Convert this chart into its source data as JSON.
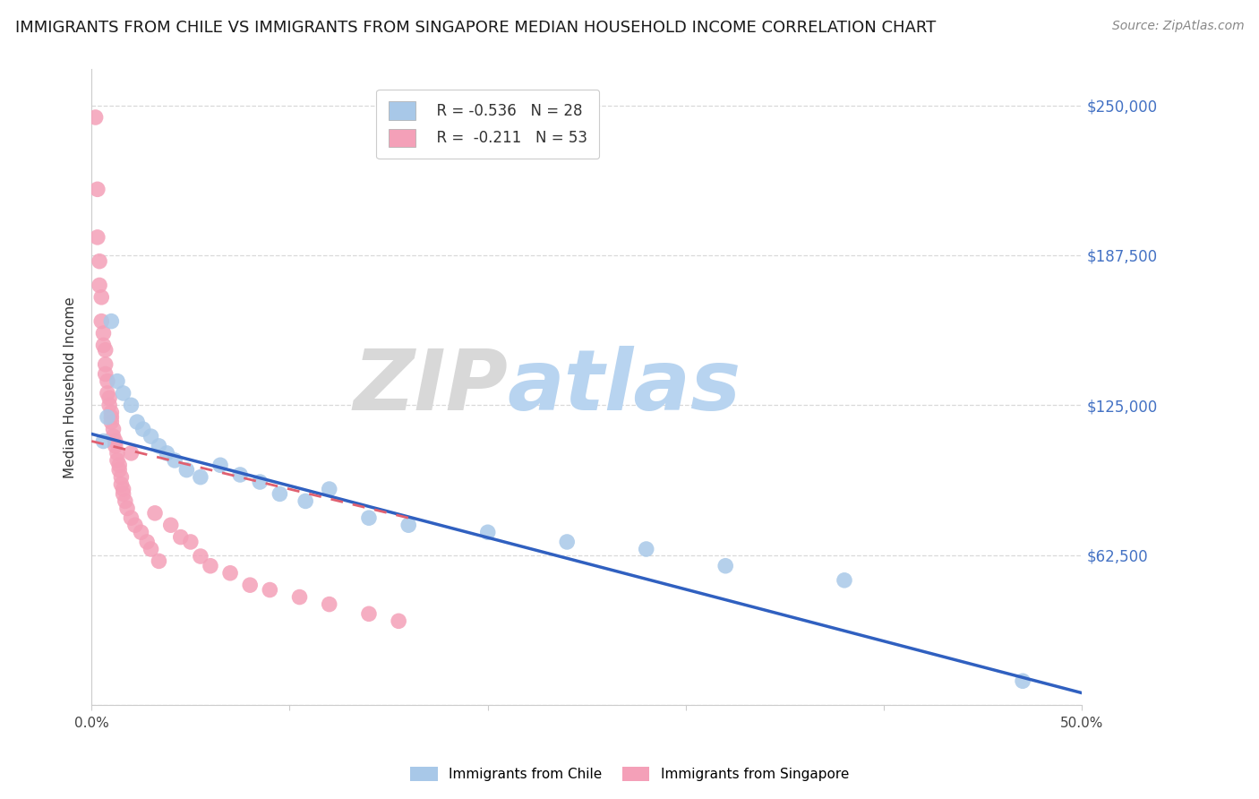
{
  "title": "IMMIGRANTS FROM CHILE VS IMMIGRANTS FROM SINGAPORE MEDIAN HOUSEHOLD INCOME CORRELATION CHART",
  "source": "Source: ZipAtlas.com",
  "ylabel": "Median Household Income",
  "yticks": [
    0,
    62500,
    125000,
    187500,
    250000
  ],
  "ytick_labels": [
    "",
    "$62,500",
    "$125,000",
    "$187,500",
    "$250,000"
  ],
  "xlim": [
    0.0,
    0.5
  ],
  "ylim": [
    0,
    265000
  ],
  "watermark_zip": "ZIP",
  "watermark_atlas": "atlas",
  "legend_chile_r": "-0.536",
  "legend_chile_n": "28",
  "legend_singapore_r": "-0.211",
  "legend_singapore_n": "53",
  "chile_color": "#a8c8e8",
  "singapore_color": "#f4a0b8",
  "chile_line_color": "#3060c0",
  "singapore_line_color": "#e06070",
  "chile_scatter_x": [
    0.006,
    0.008,
    0.01,
    0.013,
    0.016,
    0.02,
    0.023,
    0.026,
    0.03,
    0.034,
    0.038,
    0.042,
    0.048,
    0.055,
    0.065,
    0.075,
    0.085,
    0.095,
    0.108,
    0.12,
    0.14,
    0.16,
    0.2,
    0.24,
    0.28,
    0.32,
    0.38,
    0.47
  ],
  "chile_scatter_y": [
    110000,
    120000,
    160000,
    135000,
    130000,
    125000,
    118000,
    115000,
    112000,
    108000,
    105000,
    102000,
    98000,
    95000,
    100000,
    96000,
    93000,
    88000,
    85000,
    90000,
    78000,
    75000,
    72000,
    68000,
    65000,
    58000,
    52000,
    10000
  ],
  "singapore_scatter_x": [
    0.002,
    0.003,
    0.003,
    0.004,
    0.004,
    0.005,
    0.005,
    0.006,
    0.006,
    0.007,
    0.007,
    0.007,
    0.008,
    0.008,
    0.009,
    0.009,
    0.01,
    0.01,
    0.01,
    0.011,
    0.011,
    0.012,
    0.012,
    0.013,
    0.013,
    0.014,
    0.014,
    0.015,
    0.015,
    0.016,
    0.016,
    0.017,
    0.018,
    0.02,
    0.022,
    0.025,
    0.028,
    0.03,
    0.034,
    0.04,
    0.045,
    0.05,
    0.055,
    0.06,
    0.07,
    0.08,
    0.09,
    0.105,
    0.12,
    0.14,
    0.155,
    0.02,
    0.032
  ],
  "singapore_scatter_y": [
    245000,
    215000,
    195000,
    185000,
    175000,
    170000,
    160000,
    155000,
    150000,
    148000,
    142000,
    138000,
    135000,
    130000,
    128000,
    125000,
    122000,
    120000,
    118000,
    115000,
    112000,
    110000,
    108000,
    105000,
    102000,
    100000,
    98000,
    95000,
    92000,
    90000,
    88000,
    85000,
    82000,
    78000,
    75000,
    72000,
    68000,
    65000,
    60000,
    75000,
    70000,
    68000,
    62000,
    58000,
    55000,
    50000,
    48000,
    45000,
    42000,
    38000,
    35000,
    105000,
    80000
  ],
  "chile_line_x0": 0.0,
  "chile_line_x1": 0.5,
  "chile_line_y0": 113000,
  "chile_line_y1": 5000,
  "singapore_line_x0": 0.0,
  "singapore_line_x1": 0.16,
  "singapore_line_y0": 110000,
  "singapore_line_y1": 78000,
  "background_color": "#ffffff",
  "grid_color": "#d0d0d0",
  "right_label_color": "#4472c4",
  "title_fontsize": 13,
  "source_fontsize": 10,
  "axis_label_fontsize": 11
}
